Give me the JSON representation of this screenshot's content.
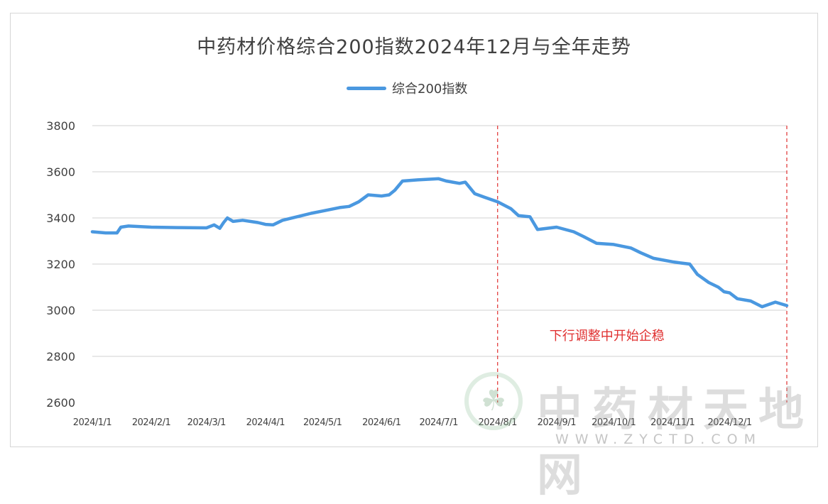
{
  "chart_data": {
    "type": "line",
    "title": "中药材价格综合200指数2024年12月与全年走势",
    "legend": {
      "placement": "top-center",
      "entries": [
        "综合200指数"
      ]
    },
    "colors": {
      "series": "#4a98e0",
      "grid": "#d0d0d0",
      "axis_text": "#404040",
      "annotation": "#e03030"
    },
    "grid": true,
    "ylim": [
      2600,
      3800
    ],
    "yticks": [
      2600,
      2800,
      3000,
      3200,
      3400,
      3600,
      3800
    ],
    "xticks": [
      "2024/1/1",
      "2024/2/1",
      "2024/3/1",
      "2024/4/1",
      "2024/5/1",
      "2024/6/1",
      "2024/7/1",
      "2024/8/1",
      "2024/9/1",
      "2024/10/1",
      "2024/11/1",
      "2024/12/1"
    ],
    "xlim": [
      "2024/1/1",
      "2024/12/31"
    ],
    "series": [
      {
        "name": "综合200指数",
        "x": [
          "2024/1/1",
          "2024/1/8",
          "2024/1/14",
          "2024/1/16",
          "2024/1/20",
          "2024/2/1",
          "2024/2/15",
          "2024/3/1",
          "2024/3/5",
          "2024/3/8",
          "2024/3/10",
          "2024/3/12",
          "2024/3/15",
          "2024/3/20",
          "2024/3/28",
          "2024/4/1",
          "2024/4/5",
          "2024/4/10",
          "2024/4/20",
          "2024/4/25",
          "2024/5/1",
          "2024/5/10",
          "2024/5/15",
          "2024/5/20",
          "2024/5/25",
          "2024/6/1",
          "2024/6/5",
          "2024/6/8",
          "2024/6/12",
          "2024/6/20",
          "2024/7/1",
          "2024/7/5",
          "2024/7/12",
          "2024/7/15",
          "2024/7/20",
          "2024/7/25",
          "2024/8/1",
          "2024/8/8",
          "2024/8/12",
          "2024/8/18",
          "2024/8/22",
          "2024/9/1",
          "2024/9/10",
          "2024/9/15",
          "2024/9/22",
          "2024/10/1",
          "2024/10/10",
          "2024/10/15",
          "2024/10/22",
          "2024/11/1",
          "2024/11/5",
          "2024/11/10",
          "2024/11/14",
          "2024/11/20",
          "2024/11/25",
          "2024/11/28",
          "2024/12/1",
          "2024/12/5",
          "2024/12/12",
          "2024/12/18",
          "2024/12/25",
          "2024/12/31"
        ],
        "values": [
          3340,
          3335,
          3335,
          3360,
          3365,
          3360,
          3358,
          3357,
          3370,
          3355,
          3380,
          3400,
          3385,
          3390,
          3380,
          3372,
          3370,
          3390,
          3410,
          3420,
          3430,
          3445,
          3450,
          3470,
          3500,
          3495,
          3500,
          3520,
          3560,
          3565,
          3570,
          3560,
          3550,
          3555,
          3505,
          3490,
          3470,
          3440,
          3410,
          3405,
          3350,
          3360,
          3340,
          3320,
          3290,
          3285,
          3270,
          3250,
          3225,
          3210,
          3205,
          3200,
          3155,
          3120,
          3100,
          3080,
          3075,
          3050,
          3040,
          3015,
          3035,
          3020
        ]
      }
    ],
    "annotations": [
      {
        "type": "vline",
        "x": "2024/8/1"
      },
      {
        "type": "vline",
        "x": "2024/12/31"
      },
      {
        "type": "text",
        "text": "下行调整中开始企稳",
        "x": "2024/9/1",
        "y": 2890
      }
    ]
  },
  "watermark": {
    "logo_glyph": "☘",
    "brand_text": "中药材天地网",
    "url": "WWW.ZYCTD.COM"
  }
}
